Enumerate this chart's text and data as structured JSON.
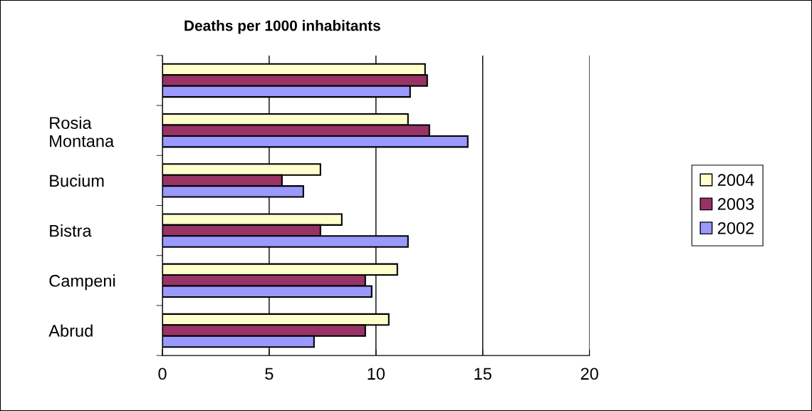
{
  "chart_data": {
    "type": "bar",
    "orientation": "horizontal",
    "title": "Deaths per 1000 inhabitants",
    "categories": [
      null,
      "Rosia\nMontana",
      "Bucium",
      "Bistra",
      "Campeni",
      "Abrud"
    ],
    "series": [
      {
        "name": "2004",
        "color": "#ffffcc",
        "values": [
          12.3,
          11.5,
          7.4,
          8.4,
          11.0,
          10.6
        ]
      },
      {
        "name": "2003",
        "color": "#993366",
        "values": [
          12.4,
          12.5,
          5.6,
          7.4,
          9.5,
          9.5
        ]
      },
      {
        "name": "2002",
        "color": "#9999ff",
        "values": [
          11.6,
          14.3,
          6.6,
          11.5,
          9.8,
          7.1
        ]
      }
    ],
    "xlim": [
      0,
      20
    ],
    "xticks": [
      0,
      5,
      10,
      15,
      20
    ],
    "grid": "x",
    "legend": "right"
  }
}
